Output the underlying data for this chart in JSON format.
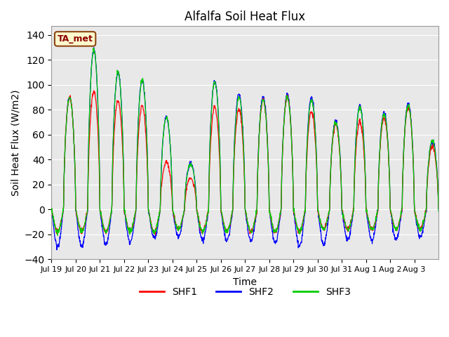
{
  "title": "Alfalfa Soil Heat Flux",
  "xlabel": "Time",
  "ylabel": "Soil Heat Flux (W/m2)",
  "ylim": [
    -40,
    147
  ],
  "yticks": [
    -40,
    -20,
    0,
    20,
    40,
    60,
    80,
    100,
    120,
    140
  ],
  "annotation_text": "TA_met",
  "annotation_color": "#8B0000",
  "annotation_bg": "#FFFACD",
  "annotation_border": "#8B4513",
  "line_colors": {
    "SHF1": "#FF0000",
    "SHF2": "#0000FF",
    "SHF3": "#00CC00"
  },
  "bg_color": "#E8E8E8",
  "fig_bg": "#FFFFFF",
  "x_tick_labels": [
    "Jul 19",
    "Jul 20",
    "Jul 21",
    "Jul 22",
    "Jul 23",
    "Jul 24",
    "Jul 25",
    "Jul 26",
    "Jul 27",
    "Jul 28",
    "Jul 29",
    "Jul 30",
    "Jul 31",
    "Aug 1",
    "Aug 2",
    "Aug 3"
  ],
  "num_days": 16,
  "pts_per_day": 96,
  "day_peaks_shf2": [
    90,
    128,
    110,
    104,
    74,
    37,
    103,
    93,
    91,
    92,
    90,
    71,
    83,
    78,
    85,
    55
  ],
  "day_peaks_shf1": [
    90,
    95,
    87,
    83,
    38,
    25,
    82,
    80,
    88,
    90,
    79,
    68,
    70,
    73,
    82,
    50
  ],
  "day_peaks_shf3": [
    90,
    128,
    110,
    104,
    74,
    36,
    102,
    90,
    88,
    90,
    88,
    70,
    82,
    76,
    83,
    55
  ],
  "night_troughs_shf2": [
    -30,
    -30,
    -28,
    -27,
    -23,
    -22,
    -25,
    -25,
    -25,
    -27,
    -30,
    -28,
    -25,
    -25,
    -24,
    -22
  ],
  "night_troughs_shf1": [
    -18,
    -18,
    -18,
    -18,
    -18,
    -16,
    -18,
    -18,
    -18,
    -18,
    -18,
    -16,
    -16,
    -16,
    -16,
    -16
  ],
  "night_troughs_shf3": [
    -18,
    -18,
    -18,
    -18,
    -18,
    -16,
    -18,
    -18,
    -18,
    -18,
    -18,
    -16,
    -16,
    -16,
    -16,
    -16
  ]
}
